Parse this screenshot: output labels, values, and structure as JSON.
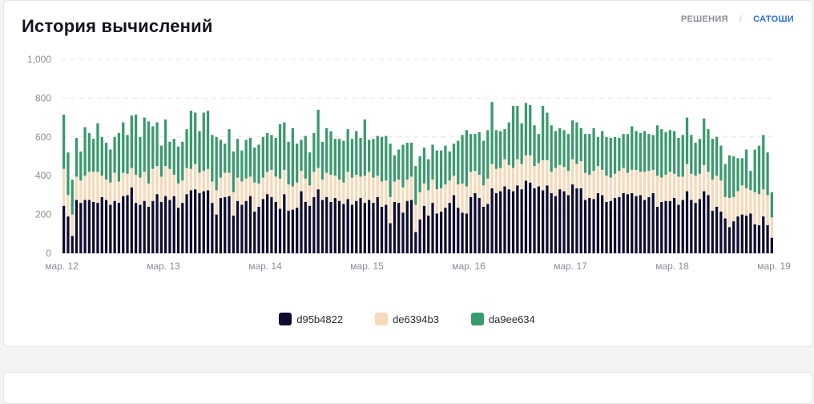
{
  "header": {
    "title": "История вычислений",
    "toggle": {
      "option_solutions": "РЕШЕНИЯ",
      "separator": "/",
      "option_satoshi": "САТОШИ",
      "active": "САТОШИ"
    }
  },
  "colors": {
    "series1": "#100c2e",
    "series2": "#f6d9b8",
    "series3": "#3a9a6e",
    "grid": "#e6e6ec",
    "axis_text": "#8a8d99",
    "active": "#2b6fe0"
  },
  "chart_data": {
    "type": "bar",
    "stacked": true,
    "title": "История вычислений",
    "xlabel": "",
    "ylabel": "",
    "ylim": [
      0,
      1000
    ],
    "yticks": [
      "0",
      "200",
      "400",
      "600",
      "800",
      "1,000"
    ],
    "x_range": [
      12,
      19
    ],
    "xticks": [
      {
        "label": "мар. 12",
        "day": 12
      },
      {
        "label": "мар. 13",
        "day": 13
      },
      {
        "label": "мар. 14",
        "day": 14
      },
      {
        "label": "мар. 15",
        "day": 15
      },
      {
        "label": "мар. 16",
        "day": 16
      },
      {
        "label": "мар. 17",
        "day": 17
      },
      {
        "label": "мар. 18",
        "day": 18
      },
      {
        "label": "мар. 19",
        "day": 19
      }
    ],
    "bar_count": 168,
    "legend_position": "bottom-center",
    "series": [
      {
        "name": "d95b4822",
        "color": "#100c2e",
        "values": [
          245,
          190,
          90,
          275,
          260,
          275,
          275,
          265,
          260,
          290,
          275,
          250,
          270,
          260,
          295,
          300,
          340,
          260,
          250,
          270,
          240,
          270,
          305,
          265,
          295,
          275,
          295,
          235,
          260,
          305,
          325,
          330,
          310,
          320,
          325,
          260,
          200,
          285,
          290,
          295,
          195,
          270,
          250,
          270,
          295,
          215,
          240,
          280,
          305,
          290,
          265,
          230,
          305,
          220,
          225,
          235,
          320,
          265,
          245,
          290,
          330,
          275,
          290,
          265,
          285,
          270,
          255,
          280,
          250,
          270,
          285,
          260,
          275,
          260,
          290,
          240,
          250,
          155,
          265,
          260,
          210,
          270,
          275,
          110,
          175,
          245,
          195,
          260,
          205,
          215,
          235,
          260,
          300,
          235,
          210,
          205,
          290,
          310,
          285,
          240,
          255,
          335,
          310,
          320,
          345,
          330,
          320,
          350,
          330,
          375,
          365,
          335,
          345,
          325,
          350,
          310,
          295,
          330,
          320,
          300,
          355,
          335,
          335,
          275,
          285,
          280,
          310,
          300,
          265,
          270,
          285,
          290,
          310,
          305,
          310,
          295,
          300,
          275,
          290,
          310,
          240,
          265,
          270,
          270,
          285,
          250,
          275,
          320,
          275,
          260,
          280,
          320,
          300,
          220,
          240,
          215,
          180,
          135,
          165,
          190,
          200,
          195,
          205,
          150,
          145,
          190,
          145,
          80
        ]
      },
      {
        "name": "de6394b3",
        "color": "#f6d9b8",
        "values": [
          190,
          110,
          110,
          120,
          115,
          125,
          145,
          155,
          160,
          110,
          105,
          115,
          145,
          110,
          120,
          110,
          100,
          145,
          140,
          150,
          120,
          165,
          145,
          130,
          155,
          160,
          110,
          125,
          115,
          135,
          110,
          130,
          105,
          105,
          110,
          110,
          125,
          105,
          125,
          120,
          120,
          120,
          120,
          115,
          100,
          150,
          120,
          110,
          115,
          140,
          130,
          155,
          125,
          135,
          120,
          130,
          105,
          120,
          105,
          130,
          110,
          105,
          125,
          140,
          115,
          110,
          110,
          140,
          140,
          135,
          110,
          140,
          145,
          130,
          110,
          130,
          125,
          135,
          105,
          120,
          130,
          110,
          120,
          140,
          140,
          115,
          130,
          120,
          125,
          120,
          120,
          115,
          100,
          120,
          150,
          140,
          130,
          115,
          120,
          110,
          130,
          125,
          125,
          120,
          140,
          125,
          120,
          135,
          130,
          130,
          140,
          115,
          120,
          155,
          130,
          110,
          145,
          125,
          125,
          125,
          130,
          125,
          140,
          140,
          120,
          145,
          140,
          130,
          135,
          120,
          125,
          135,
          130,
          110,
          120,
          135,
          120,
          145,
          135,
          120,
          160,
          125,
          135,
          150,
          125,
          145,
          120,
          140,
          135,
          140,
          130,
          135,
          120,
          160,
          160,
          160,
          110,
          150,
          125,
          130,
          150,
          140,
          120,
          165,
          160,
          140,
          155,
          105
        ]
      },
      {
        "name": "da9ee634",
        "color": "#3a9a6e",
        "values": [
          280,
          220,
          180,
          200,
          150,
          250,
          200,
          170,
          250,
          200,
          190,
          170,
          185,
          250,
          260,
          200,
          270,
          310,
          210,
          280,
          320,
          220,
          225,
          160,
          240,
          140,
          185,
          190,
          200,
          200,
          300,
          265,
          215,
          300,
          300,
          240,
          275,
          195,
          150,
          225,
          210,
          200,
          160,
          200,
          200,
          180,
          200,
          210,
          200,
          180,
          200,
          280,
          245,
          220,
          300,
          200,
          160,
          220,
          170,
          200,
          300,
          195,
          230,
          225,
          190,
          210,
          215,
          220,
          200,
          225,
          200,
          290,
          165,
          200,
          205,
          230,
          230,
          275,
          135,
          155,
          220,
          190,
          175,
          200,
          185,
          185,
          160,
          180,
          200,
          195,
          200,
          150,
          165,
          225,
          250,
          290,
          195,
          190,
          220,
          230,
          250,
          320,
          200,
          190,
          155,
          220,
          320,
          275,
          210,
          270,
          260,
          210,
          150,
          280,
          245,
          240,
          190,
          190,
          190,
          190,
          200,
          215,
          170,
          200,
          210,
          220,
          150,
          200,
          200,
          205,
          190,
          170,
          175,
          200,
          225,
          200,
          200,
          210,
          190,
          180,
          260,
          250,
          220,
          215,
          220,
          200,
          215,
          240,
          200,
          170,
          180,
          240,
          220,
          210,
          200,
          180,
          170,
          220,
          210,
          170,
          140,
          200,
          100,
          220,
          250,
          280,
          220,
          130
        ]
      }
    ]
  },
  "legend": [
    {
      "label": "d95b4822"
    },
    {
      "label": "de6394b3"
    },
    {
      "label": "da9ee634"
    }
  ]
}
